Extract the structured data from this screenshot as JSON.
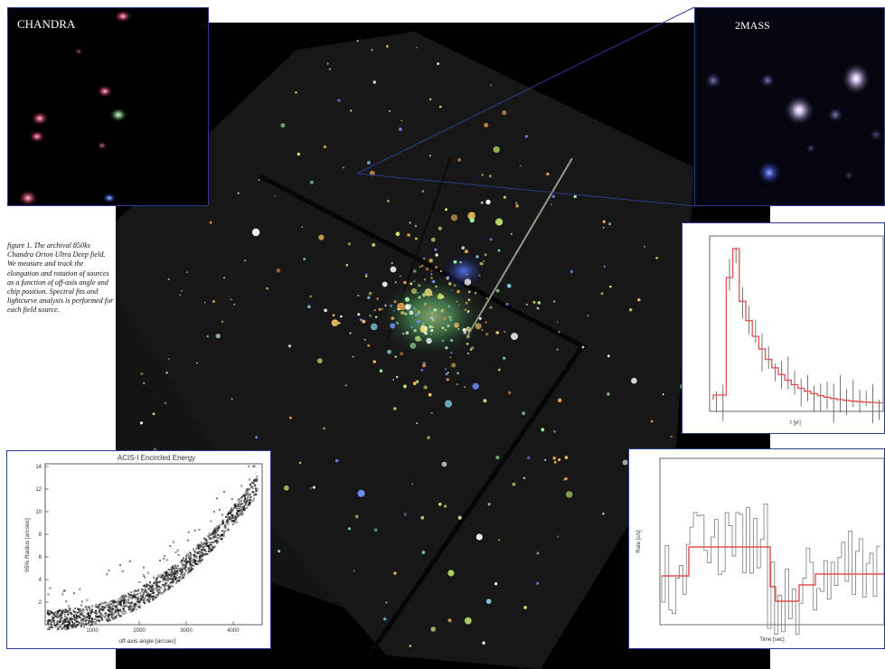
{
  "insets": {
    "chandra_label": "CHANDRA",
    "twomass_label": "2MASS"
  },
  "caption": "figure 1. The archival 850ks Chandra Orion Ultra Deep field. We measure and track the elongation and rotation of sources as a function of off-axis angle and chip position. Spectral fits and lightcurve analysis is performed for each field source.",
  "encircled_energy_plot": {
    "title": "ACIS-I Encircled Energy",
    "xlabel": "off-axis angle [arcsec]",
    "ylabel": "95% Radius [arcsec]",
    "x_ticks": [
      "1000",
      "2000",
      "3000",
      "4000"
    ],
    "y_ticks": [
      "2",
      "4",
      "6",
      "8",
      "10",
      "12",
      "14"
    ]
  },
  "lightcurve_1": {
    "xlabel": "t [yr]"
  },
  "lightcurve_2": {
    "xlabel": "Time [sec]",
    "ylabel": "Rate [c/s]"
  },
  "colors": {
    "frame_blue": "#2a3a8a",
    "fit_red": "#e05050",
    "background": "#000000"
  }
}
